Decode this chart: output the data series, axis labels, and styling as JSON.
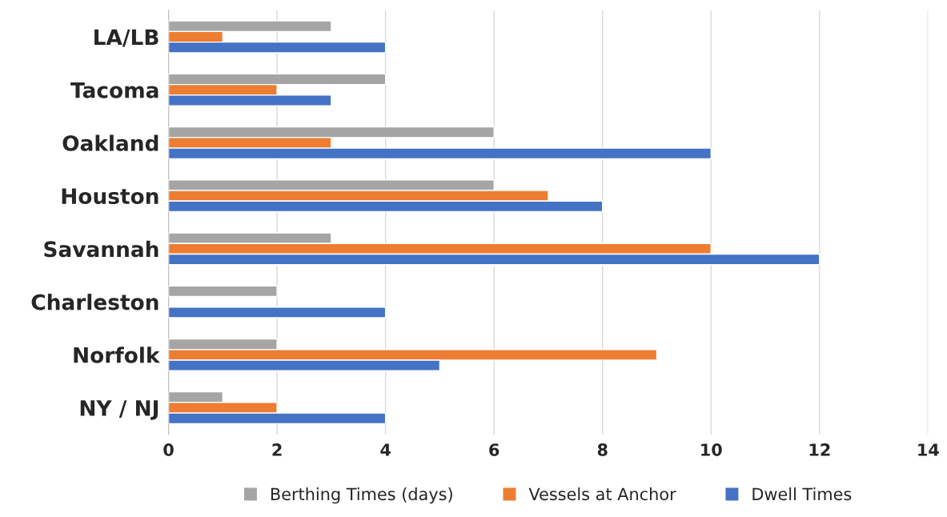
{
  "chart_data": {
    "type": "bar",
    "orientation": "horizontal",
    "categories": [
      "LA/LB",
      "Tacoma",
      "Oakland",
      "Houston",
      "Savannah",
      "Charleston",
      "Norfolk",
      "NY / NJ"
    ],
    "series": [
      {
        "name": "Berthing Times (days)",
        "color": "#a5a5a5",
        "values": [
          3,
          4,
          6,
          6,
          3,
          2,
          2,
          1
        ]
      },
      {
        "name": "Vessels at Anchor",
        "color": "#ed7d31",
        "values": [
          1,
          2,
          3,
          7,
          10,
          null,
          9,
          2
        ]
      },
      {
        "name": "Dwell Times",
        "color": "#4472c4",
        "values": [
          4,
          3,
          10,
          8,
          12,
          4,
          5,
          4
        ]
      }
    ],
    "xlim": [
      0,
      14
    ],
    "xticks": [
      0,
      2,
      4,
      6,
      8,
      10,
      12,
      14
    ],
    "grid": "x",
    "legend": "bottom"
  }
}
